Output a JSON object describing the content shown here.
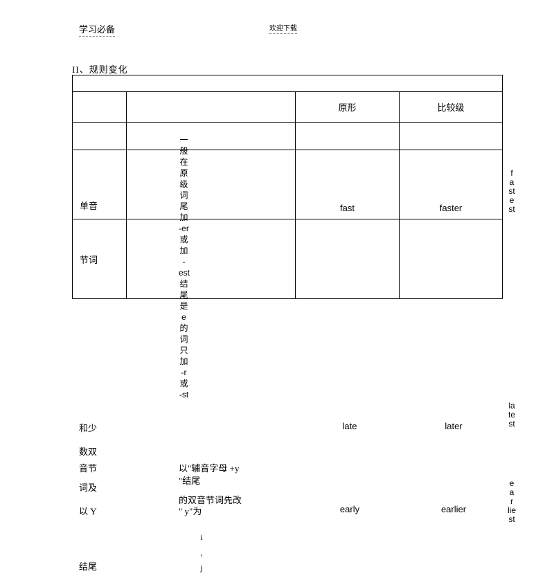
{
  "header": {
    "left": "学习必备",
    "right": "欢迎下载"
  },
  "section_title": "II、规则变化",
  "table_headers": {
    "original": "原形",
    "comparative": "比较级"
  },
  "row_labels": {
    "mono": "单音",
    "syllable": "节词"
  },
  "left_labels": {
    "few": "和少",
    "double_count": "数双",
    "syllable2": "音节",
    "and": "词及",
    "yi_y": "以 Y",
    "end": "结尾"
  },
  "vertical_rule": [
    "一",
    "般",
    "在",
    "原",
    "级",
    "词",
    "尾",
    "加",
    "-er",
    "或",
    "加",
    "-",
    "est",
    "结",
    "尾",
    "是",
    "e",
    "的",
    "词",
    "只",
    "加",
    "-r",
    "或",
    "-st"
  ],
  "rule2": {
    "line1": "以\"辅音字母 +y",
    "line2": "\"结尾",
    "line3": "的双音节词先改",
    "line4": "\" y\"为"
  },
  "tail_chars": [
    "i",
    ",",
    "",
    "j"
  ],
  "examples": {
    "fast": {
      "orig": "fast",
      "comp": "faster",
      "sup": "fastest"
    },
    "late": {
      "orig": "late",
      "comp": "later",
      "sup": "latest"
    },
    "early": {
      "orig": "early",
      "comp": "earlier",
      "sup": "earliest"
    }
  },
  "sup_positions": {
    "fast": 244,
    "late": 580,
    "early": 692
  }
}
